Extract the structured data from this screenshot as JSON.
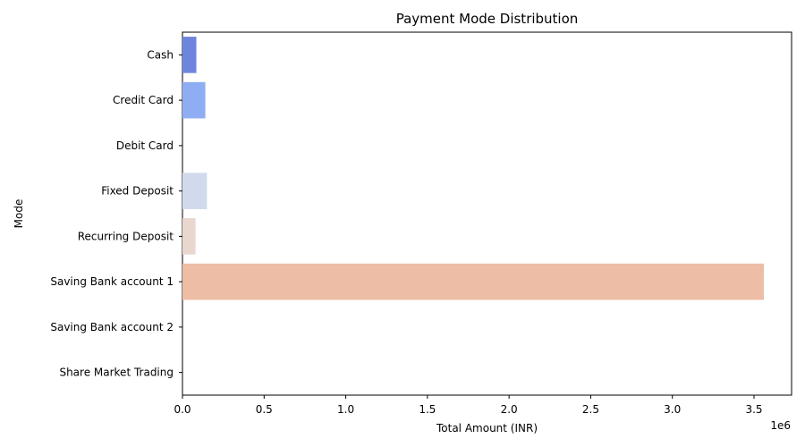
{
  "chart_data": {
    "type": "bar",
    "orientation": "horizontal",
    "title": "Payment Mode Distribution",
    "xlabel": "Total Amount (INR)",
    "ylabel": "Mode",
    "x_offset_label": "1e6",
    "xlim": [
      0,
      3.73
    ],
    "x_unit_multiplier": 1000000,
    "x_ticks": [
      "0.0",
      "0.5",
      "1.0",
      "1.5",
      "2.0",
      "2.5",
      "3.0",
      "3.5"
    ],
    "categories": [
      "Cash",
      "Credit Card",
      "Debit Card",
      "Fixed Deposit",
      "Recurring Deposit",
      "Saving Bank account 1",
      "Saving Bank account 2",
      "Share Market Trading"
    ],
    "values": [
      0.085,
      0.14,
      0.0,
      0.15,
      0.08,
      3.56,
      0.0,
      0.0
    ],
    "colors": [
      "#6f85dd",
      "#8fadf2",
      "#bcd0f5",
      "#d0daec",
      "#e8d6cf",
      "#edbda6",
      "#e89a7d",
      "#d46a57"
    ],
    "grid": false,
    "legend": "none"
  }
}
